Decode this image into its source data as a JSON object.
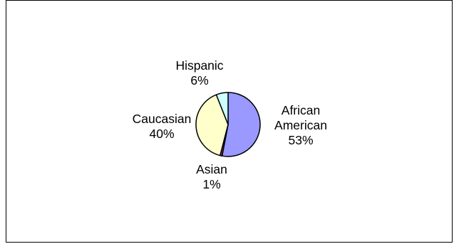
{
  "chart_data": {
    "type": "pie",
    "title": "",
    "slices": [
      {
        "label": "African American",
        "label_lines": [
          "African",
          "American"
        ],
        "value": 53,
        "value_text": "53%",
        "color": "#9999ff"
      },
      {
        "label": "Asian",
        "label_lines": [
          "Asian"
        ],
        "value": 1,
        "value_text": "1%",
        "color": "#993366"
      },
      {
        "label": "Caucasian",
        "label_lines": [
          "Caucasian"
        ],
        "value": 40,
        "value_text": "40%",
        "color": "#ffffcc"
      },
      {
        "label": "Hispanic",
        "label_lines": [
          "Hispanic"
        ],
        "value": 6,
        "value_text": "6%",
        "color": "#ccffff"
      }
    ],
    "start_angle_deg": 0,
    "direction": "clockwise",
    "legend": "none",
    "data_labels": "outside"
  }
}
